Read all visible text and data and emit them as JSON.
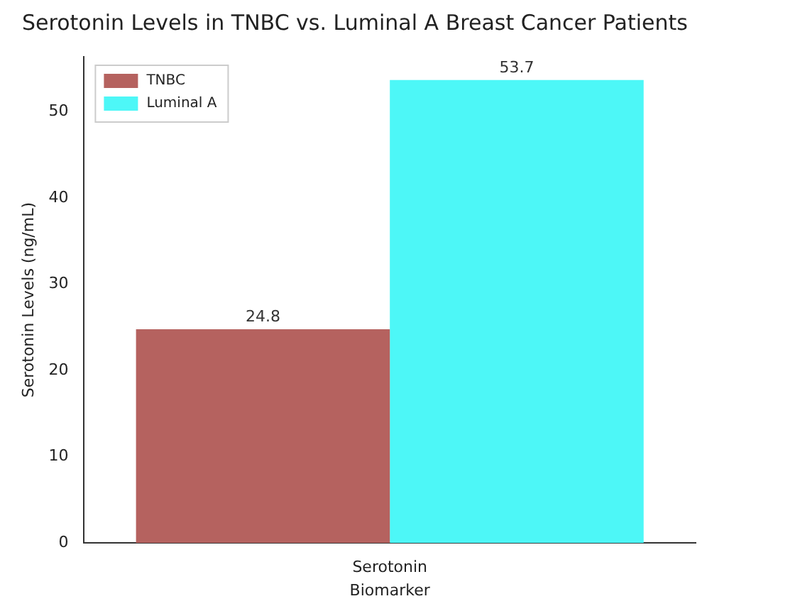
{
  "chart_data": {
    "type": "bar",
    "title": "Serotonin Levels in TNBC vs. Luminal A Breast Cancer Patients",
    "xlabel": "Biomarker",
    "ylabel": "Serotonin Levels (ng/mL)",
    "categories": [
      "Serotonin"
    ],
    "series": [
      {
        "name": "TNBC",
        "color": "#b5625f",
        "values": [
          24.8
        ]
      },
      {
        "name": "Luminal A",
        "color": "#4df7f7",
        "values": [
          53.7
        ]
      }
    ],
    "ylim": [
      0,
      56.4
    ],
    "yticks": [
      0,
      10,
      20,
      30,
      40,
      50
    ],
    "grid": false,
    "legend": "top left",
    "data_labels": true
  }
}
